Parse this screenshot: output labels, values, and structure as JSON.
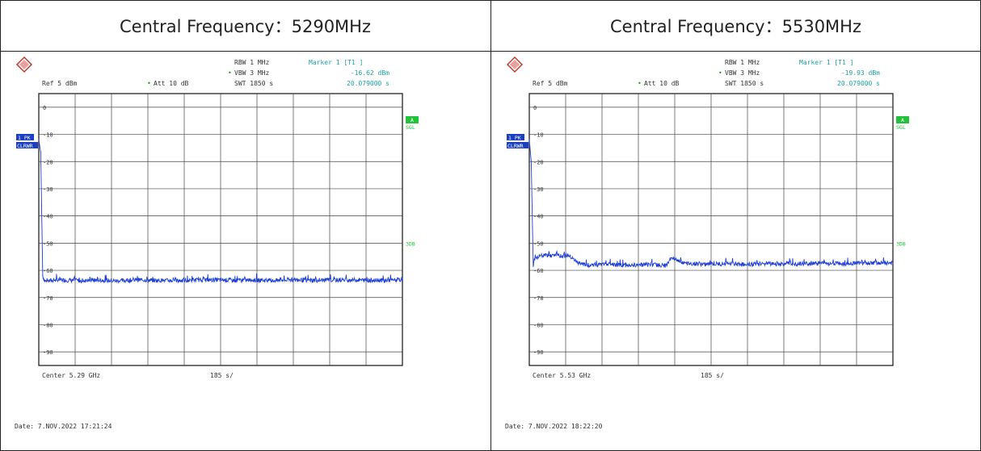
{
  "panels": [
    {
      "heading": "Central Frequency：5290MHz",
      "logo": "rohde-schwarz-logo",
      "readout": {
        "rbw": "RBW  1 MHz",
        "vbw": "VBW  3 MHz",
        "swt": "SWT  1850 s",
        "att": "Att   10 dB",
        "ref": "Ref   5 dBm",
        "marker": "Marker 1 [T1 ]",
        "marker_level": "-16.62 dBm",
        "marker_time": "20.079000 s"
      },
      "trace_label": "1 PK",
      "trace_mode": "CLRWR",
      "badge_a": "A",
      "badge_sgl": "SGL",
      "side_3db": "3DB",
      "footer_center": "Center 5.29 GHz",
      "footer_span": "185 s/",
      "date": "Date:  7.NOV.2022   17:21:24"
    },
    {
      "heading": "Central Frequency：5530MHz",
      "logo": "rohde-schwarz-logo",
      "readout": {
        "rbw": "RBW  1 MHz",
        "vbw": "VBW  3 MHz",
        "swt": "SWT  1850 s",
        "att": "Att   10 dB",
        "ref": "Ref   5 dBm",
        "marker": "Marker 1 [T1 ]",
        "marker_level": "-19.93 dBm",
        "marker_time": "20.079000 s"
      },
      "trace_label": "1 PK",
      "trace_mode": "CLRWR",
      "badge_a": "A",
      "badge_sgl": "SGL",
      "side_3db": "3DB",
      "footer_center": "Center 5.53 GHz",
      "footer_span": "185 s/",
      "date": "Date:  7.NOV.2022   18:22:20"
    }
  ],
  "colors": {
    "trace": "#1f3fd6",
    "badge_blue": "#1b3fbf",
    "badge_green": "#22c33a",
    "readout_teal": "#20a0a0"
  },
  "chart_data": [
    {
      "type": "line",
      "title": "Central Frequency：5290MHz",
      "xlabel": "",
      "ylabel": "",
      "x_unit": "s",
      "xlim": [
        0,
        1850
      ],
      "ylim": [
        -95,
        5
      ],
      "yticks": [
        0,
        -10,
        -20,
        -30,
        -40,
        -50,
        -60,
        -70,
        -80,
        -90
      ],
      "grid": true,
      "series": [
        {
          "x": [
            0,
            10,
            20,
            30,
            100,
            200,
            300,
            400,
            500,
            600,
            700,
            800,
            900,
            1000,
            1100,
            1200,
            1300,
            1400,
            1500,
            1600,
            1700,
            1800,
            1850
          ],
          "y": [
            -12,
            -16.6,
            -62,
            -64,
            -63.5,
            -63.8,
            -63.6,
            -63.9,
            -63.5,
            -63.7,
            -63.8,
            -63.6,
            -63.5,
            -63.7,
            -63.6,
            -63.8,
            -63.5,
            -63.7,
            -63.6,
            -63.5,
            -63.7,
            -63.6,
            -63.5
          ]
        }
      ]
    },
    {
      "type": "line",
      "title": "Central Frequency：5530MHz",
      "xlabel": "",
      "ylabel": "",
      "x_unit": "s",
      "xlim": [
        0,
        1850
      ],
      "ylim": [
        -95,
        5
      ],
      "yticks": [
        0,
        -10,
        -20,
        -30,
        -40,
        -50,
        -60,
        -70,
        -80,
        -90
      ],
      "grid": true,
      "series": [
        {
          "x": [
            0,
            10,
            20,
            30,
            100,
            200,
            250,
            300,
            400,
            500,
            600,
            700,
            720,
            800,
            900,
            1000,
            1100,
            1200,
            1300,
            1400,
            1500,
            1600,
            1700,
            1800,
            1850
          ],
          "y": [
            -12,
            -19.9,
            -58,
            -55,
            -54.5,
            -54.5,
            -57.5,
            -58,
            -57.8,
            -58.2,
            -57.8,
            -58.3,
            -55.5,
            -57.5,
            -57.8,
            -57.6,
            -57.9,
            -57.5,
            -57.7,
            -57.6,
            -57.4,
            -57.6,
            -57.3,
            -57.2,
            -57.4
          ]
        }
      ]
    }
  ]
}
